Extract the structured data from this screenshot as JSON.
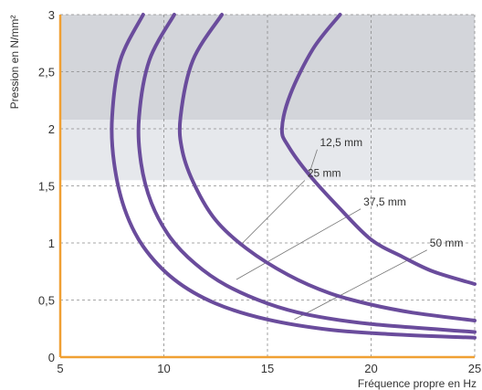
{
  "chart_data": {
    "type": "line",
    "title": "",
    "xlabel": "Fréquence propre en Hz",
    "ylabel": "Pression en N/mm²",
    "xlim": [
      5,
      25
    ],
    "ylim": [
      0,
      3
    ],
    "x_ticks": [
      5,
      10,
      15,
      20,
      25
    ],
    "x_tick_labels": [
      "5",
      "10",
      "15",
      "20",
      "25"
    ],
    "y_ticks": [
      0,
      0.5,
      1,
      1.5,
      2,
      2.5,
      3
    ],
    "y_tick_labels": [
      "0",
      "0,5",
      "1",
      "1,5",
      "2",
      "2,5",
      "3"
    ],
    "grid": true,
    "bands": [
      {
        "y_from": 1.55,
        "y_to": 2.08,
        "color": "#e6e8ec"
      },
      {
        "y_from": 2.08,
        "y_to": 3.0,
        "color": "#d3d5da"
      }
    ],
    "series_color": "#6a4c9c",
    "axis_color": "#f0a033",
    "series": [
      {
        "name": "12,5 mm",
        "points": [
          [
            18.5,
            3.0
          ],
          [
            17.2,
            2.7
          ],
          [
            16.1,
            2.3
          ],
          [
            15.7,
            2.0
          ],
          [
            16.0,
            1.85
          ],
          [
            17.0,
            1.6
          ],
          [
            18.5,
            1.3
          ],
          [
            20.0,
            1.03
          ],
          [
            21.5,
            0.88
          ],
          [
            23.0,
            0.75
          ],
          [
            25.0,
            0.64
          ]
        ]
      },
      {
        "name": "25 mm",
        "points": [
          [
            12.8,
            3.0
          ],
          [
            11.4,
            2.6
          ],
          [
            10.8,
            2.1
          ],
          [
            10.9,
            1.8
          ],
          [
            11.5,
            1.5
          ],
          [
            12.5,
            1.2
          ],
          [
            14.0,
            0.95
          ],
          [
            16.0,
            0.72
          ],
          [
            18.0,
            0.56
          ],
          [
            20.0,
            0.46
          ],
          [
            22.0,
            0.39
          ],
          [
            25.0,
            0.32
          ]
        ]
      },
      {
        "name": "37,5 mm",
        "points": [
          [
            10.5,
            3.0
          ],
          [
            9.3,
            2.6
          ],
          [
            8.8,
            2.1
          ],
          [
            8.9,
            1.7
          ],
          [
            9.4,
            1.35
          ],
          [
            10.3,
            1.05
          ],
          [
            11.5,
            0.82
          ],
          [
            13.0,
            0.63
          ],
          [
            15.0,
            0.47
          ],
          [
            17.0,
            0.37
          ],
          [
            20.0,
            0.29
          ],
          [
            25.0,
            0.22
          ]
        ]
      },
      {
        "name": "50 mm",
        "points": [
          [
            9.0,
            3.0
          ],
          [
            7.9,
            2.6
          ],
          [
            7.5,
            2.1
          ],
          [
            7.6,
            1.7
          ],
          [
            8.1,
            1.3
          ],
          [
            9.0,
            0.97
          ],
          [
            10.5,
            0.68
          ],
          [
            12.5,
            0.47
          ],
          [
            15.0,
            0.33
          ],
          [
            18.0,
            0.24
          ],
          [
            21.0,
            0.2
          ],
          [
            25.0,
            0.17
          ]
        ]
      }
    ],
    "annotations": [
      {
        "text": "12,5 mm",
        "label_at": [
          17.4,
          1.85
        ],
        "point_at": [
          17.0,
          1.6
        ]
      },
      {
        "text": "25 mm",
        "label_at": [
          16.8,
          1.58
        ],
        "point_at": [
          13.8,
          1.0
        ]
      },
      {
        "text": "37,5 mm",
        "label_at": [
          19.5,
          1.33
        ],
        "point_at": [
          13.5,
          0.68
        ]
      },
      {
        "text": "50 mm",
        "label_at": [
          22.7,
          0.97
        ],
        "point_at": [
          16.3,
          0.33
        ]
      }
    ]
  }
}
